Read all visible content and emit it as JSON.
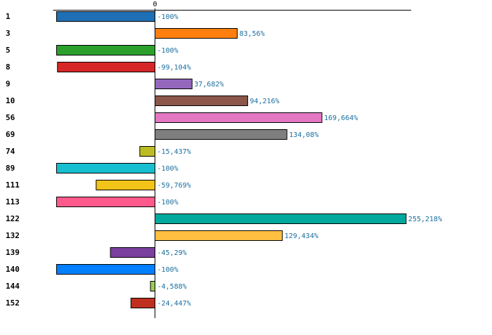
{
  "chart_data": {
    "type": "bar",
    "orientation": "horizontal",
    "title": "",
    "xlabel": "",
    "ylabel": "",
    "zero_tick_label": "0",
    "categories": [
      "1",
      "3",
      "5",
      "8",
      "9",
      "10",
      "56",
      "69",
      "74",
      "89",
      "111",
      "113",
      "122",
      "132",
      "139",
      "140",
      "144",
      "152"
    ],
    "values": [
      -100,
      83.56,
      -100,
      -99.104,
      37.682,
      94.216,
      169.664,
      134.08,
      -15.437,
      -100,
      -59.769,
      -100,
      255.218,
      129.434,
      -45.29,
      -100,
      -4.588,
      -24.447
    ],
    "value_labels": [
      "-100%",
      "83,56%",
      "-100%",
      "-99,104%",
      "37,682%",
      "94,216%",
      "169,664%",
      "134,08%",
      "-15,437%",
      "-100%",
      "-59,769%",
      "-100%",
      "255,218%",
      "129,434%",
      "-45,29%",
      "-100%",
      "-4,588%",
      "-24,447%"
    ],
    "colors": [
      "#1f6fb4",
      "#ff7f0e",
      "#2ca02c",
      "#d62728",
      "#9467bd",
      "#8c564b",
      "#e377c2",
      "#7f7f7f",
      "#bcbd22",
      "#17becf",
      "#f2c318",
      "#ff5a8c",
      "#00a99d",
      "#ffbf40",
      "#7b3f9e",
      "#0080ff",
      "#99cc55",
      "#c0301e"
    ],
    "xlim": [
      -100,
      260
    ],
    "grid": false,
    "legend": "none"
  }
}
